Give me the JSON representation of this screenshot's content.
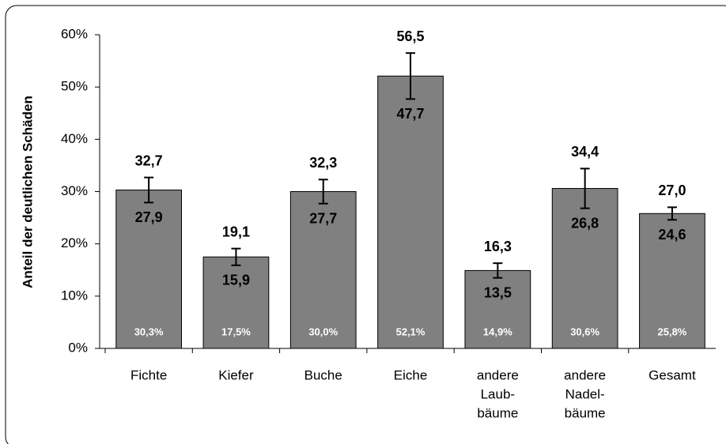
{
  "chart_data": {
    "type": "bar",
    "y_label": "Anteil der deutlichen Schäden",
    "categories": [
      [
        "Fichte"
      ],
      [
        "Kiefer"
      ],
      [
        "Buche"
      ],
      [
        "Eiche"
      ],
      [
        "andere",
        "Laub-",
        "bäume"
      ],
      [
        "andere",
        "Nadel-",
        "bäume"
      ],
      [
        "Gesamt"
      ]
    ],
    "values": [
      30.3,
      17.5,
      30.0,
      52.1,
      14.9,
      30.6,
      25.8
    ],
    "value_labels": [
      "30,3%",
      "17,5%",
      "30,0%",
      "52,1%",
      "14,9%",
      "30,6%",
      "25,8%"
    ],
    "upper": [
      32.7,
      19.1,
      32.3,
      56.5,
      16.3,
      34.4,
      27.0
    ],
    "upper_labels": [
      "32,7",
      "19,1",
      "32,3",
      "56,5",
      "16,3",
      "34,4",
      "27,0"
    ],
    "lower": [
      27.9,
      15.9,
      27.7,
      47.7,
      13.5,
      26.8,
      24.6
    ],
    "lower_labels": [
      "27,9",
      "15,9",
      "27,7",
      "47,7",
      "13,5",
      "26,8",
      "24,6"
    ],
    "color": "#808080",
    "ylim": [
      0,
      60
    ],
    "yticks": [
      {
        "value": 0,
        "label": "0%"
      },
      {
        "value": 10,
        "label": "10%"
      },
      {
        "value": 20,
        "label": "20%"
      },
      {
        "value": 30,
        "label": "30%"
      },
      {
        "value": 40,
        "label": "40%"
      },
      {
        "value": 50,
        "label": "50%"
      },
      {
        "value": 60,
        "label": "60%"
      }
    ]
  }
}
